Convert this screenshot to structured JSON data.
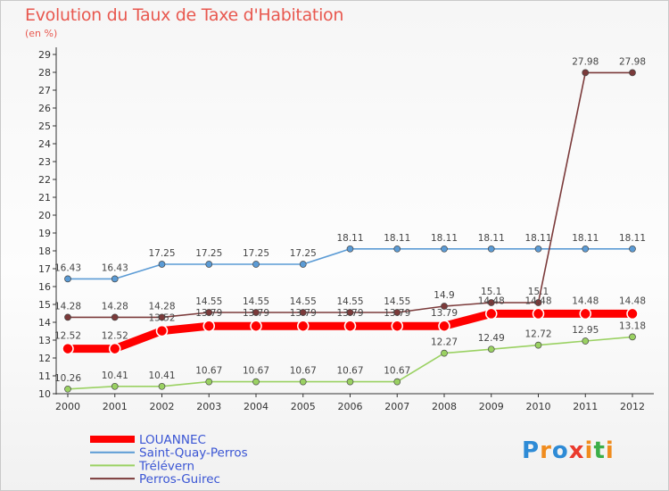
{
  "title": "Evolution du Taux de Taxe d'Habitation",
  "subtitle": "(en %)",
  "logo": {
    "letters": [
      "P",
      "r",
      "o",
      "x",
      "i",
      "t",
      "i"
    ],
    "colors": [
      "#2e8bd6",
      "#f08c1e",
      "#2e8bd6",
      "#ea3a2d",
      "#f08c1e",
      "#3cae49",
      "#f08c1e"
    ]
  },
  "chart_data": {
    "type": "line",
    "x": [
      "2000",
      "2001",
      "2002",
      "2003",
      "2004",
      "2005",
      "2006",
      "2007",
      "2008",
      "2009",
      "2010",
      "2011",
      "2012"
    ],
    "ylim": [
      10,
      29
    ],
    "yticks": [
      10,
      11,
      12,
      13,
      14,
      15,
      16,
      17,
      18,
      19,
      20,
      21,
      22,
      23,
      24,
      25,
      26,
      27,
      28,
      29
    ],
    "grid": false,
    "legend_position": "bottom-left",
    "series": [
      {
        "name": "LOUANNEC",
        "color": "#ff0000",
        "values": [
          12.52,
          12.52,
          13.52,
          13.79,
          13.79,
          13.79,
          13.79,
          13.79,
          13.79,
          14.48,
          14.48,
          14.48,
          14.48
        ],
        "labels": [
          "12.52",
          "12.52",
          "13.52",
          "13.79",
          "13.79",
          "13.79",
          "13.79",
          "13.79",
          "13.79",
          "14.48",
          "14.48",
          "14.48",
          "14.48"
        ]
      },
      {
        "name": "Saint-Quay-Perros",
        "color": "#5b9bd5",
        "values": [
          16.43,
          16.43,
          17.25,
          17.25,
          17.25,
          17.25,
          18.11,
          18.11,
          18.11,
          18.11,
          18.11,
          18.11,
          18.11
        ],
        "labels": [
          "16.43",
          "16.43",
          "17.25",
          "17.25",
          "17.25",
          "17.25",
          "18.11",
          "18.11",
          "18.11",
          "18.11",
          "18.11",
          "18.11",
          "18.11"
        ]
      },
      {
        "name": "Trélévern",
        "color": "#9ad162",
        "values": [
          10.26,
          10.41,
          10.41,
          10.67,
          10.67,
          10.67,
          10.67,
          10.67,
          12.27,
          12.49,
          12.72,
          12.95,
          13.18
        ],
        "labels": [
          "10.26",
          "10.41",
          "10.41",
          "10.67",
          "10.67",
          "10.67",
          "10.67",
          "10.67",
          "12.27",
          "12.49",
          "12.72",
          "12.95",
          "13.18"
        ]
      },
      {
        "name": "Perros-Guirec",
        "color": "#7b3a3a",
        "values": [
          14.28,
          14.28,
          14.28,
          14.55,
          14.55,
          14.55,
          14.55,
          14.55,
          14.9,
          15.1,
          15.1,
          27.98,
          27.98
        ],
        "labels": [
          "14.28",
          "14.28",
          "14.28",
          "14.55",
          "14.55",
          "14.55",
          "14.55",
          "14.55",
          "14.9",
          "15.1",
          "15.1",
          "27.98",
          "27.98"
        ]
      }
    ]
  }
}
